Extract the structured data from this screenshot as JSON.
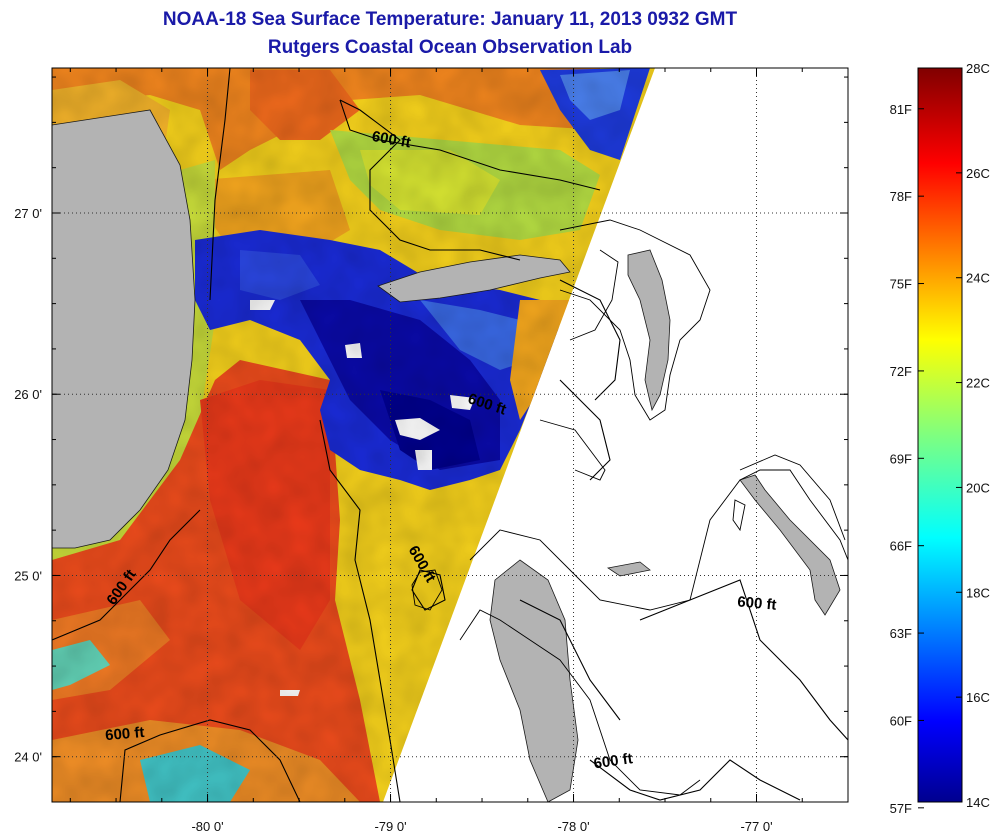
{
  "title": "NOAA-18 Sea Surface Temperature:  January 11, 2013 0932 GMT",
  "subtitle": "Rutgers Coastal Ocean Observation Lab",
  "map": {
    "lon_range": [
      -80.85,
      -76.5
    ],
    "lat_range": [
      23.75,
      27.8
    ],
    "lon_ticks": [
      {
        "value": -80,
        "label": "-80 0'"
      },
      {
        "value": -79,
        "label": "-79 0'"
      },
      {
        "value": -78,
        "label": "-78 0'"
      },
      {
        "value": -77,
        "label": "-77 0'"
      }
    ],
    "lat_ticks": [
      {
        "value": 27,
        "label": "27 0'"
      },
      {
        "value": 26,
        "label": "26 0'"
      },
      {
        "value": 25,
        "label": "25 0'"
      },
      {
        "value": 24,
        "label": "24 0'"
      }
    ],
    "contour_labels": [
      {
        "text": "600 ft",
        "lon": -79.0,
        "lat": 27.38
      },
      {
        "text": "600 ft",
        "lon": -78.48,
        "lat": 25.92
      },
      {
        "text": "600 ft",
        "lon": -78.85,
        "lat": 25.05
      },
      {
        "text": "600 ft",
        "lon": -80.45,
        "lat": 24.92
      },
      {
        "text": "600 ft",
        "lon": -80.45,
        "lat": 24.1
      },
      {
        "text": "600 ft",
        "lon": -77.0,
        "lat": 24.82
      },
      {
        "text": "600 ft",
        "lon": -77.78,
        "lat": 23.95
      }
    ],
    "colors": {
      "land": "#b3b3b3",
      "no_data": "#ffffff",
      "grid": "#333333"
    }
  },
  "colorbar": {
    "min_c": 14,
    "max_c": 28,
    "celsius_ticks": [
      {
        "value": 28,
        "label": "28C"
      },
      {
        "value": 26,
        "label": "26C"
      },
      {
        "value": 24,
        "label": "24C"
      },
      {
        "value": 22,
        "label": "22C"
      },
      {
        "value": 20,
        "label": "20C"
      },
      {
        "value": 18,
        "label": "18C"
      },
      {
        "value": 16,
        "label": "16C"
      },
      {
        "value": 14,
        "label": "14C"
      }
    ],
    "fahrenheit_ticks": [
      {
        "value": 81,
        "label": "81F"
      },
      {
        "value": 78,
        "label": "78F"
      },
      {
        "value": 75,
        "label": "75F"
      },
      {
        "value": 72,
        "label": "72F"
      },
      {
        "value": 69,
        "label": "69F"
      },
      {
        "value": 66,
        "label": "66F"
      },
      {
        "value": 63,
        "label": "63F"
      },
      {
        "value": 60,
        "label": "60F"
      },
      {
        "value": 57,
        "label": "57F"
      }
    ]
  }
}
